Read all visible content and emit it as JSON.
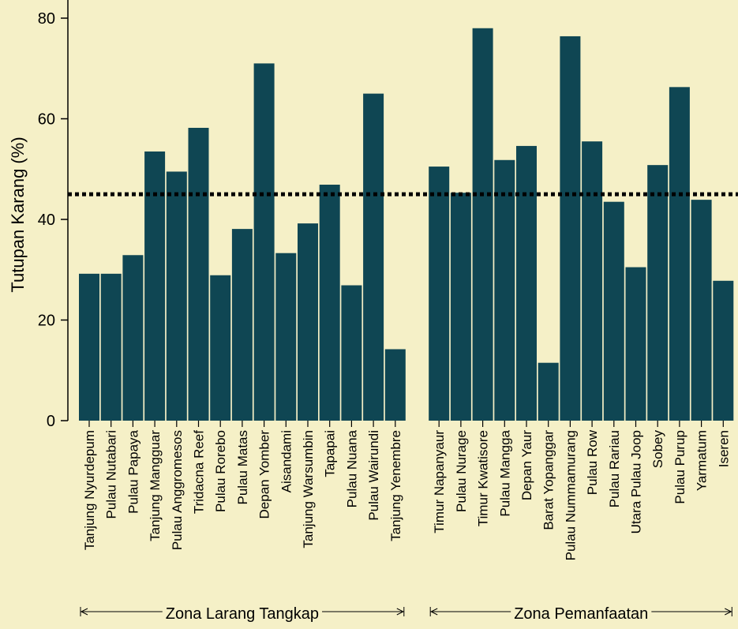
{
  "chart_data": {
    "type": "bar",
    "title": "",
    "xlabel": "",
    "ylabel": "Tutupan Karang (%)",
    "ylim": [
      0,
      80
    ],
    "yticks": [
      0,
      20,
      40,
      60,
      80
    ],
    "grid": false,
    "bar_color": "#0f4653",
    "reference_line": {
      "value": 45,
      "style": "dotted",
      "color": "#000000"
    },
    "groups": [
      {
        "label": "Zona Larang Tangkap",
        "categories": [
          "Tanjung Nyurdepum",
          "Pulau Nutabari",
          "Pulau Papaya",
          "Tanjung Mangguar",
          "Pulau Anggromesos",
          "Tridacna Reef",
          "Pulau Rorebo",
          "Pulau Matas",
          "Depan Yomber",
          "Aisandami",
          "Tanjung Warsumbin",
          "Tapapai",
          "Pulau Nuana",
          "Pulau Wairundi",
          "Tanjung Yenembre"
        ],
        "values": [
          29.2,
          29.2,
          32.9,
          53.5,
          49.5,
          58.2,
          28.9,
          38.1,
          71.0,
          33.3,
          39.2,
          46.9,
          26.9,
          65.0,
          14.2
        ]
      },
      {
        "label": "Zona Pemanfaatan",
        "categories": [
          "Timur Napanyaur",
          "Pulau Nurage",
          "Timur Kwatisore",
          "Pulau Mangga",
          "Depan Yaur",
          "Barat Yopanggar",
          "Pulau Nummamurang",
          "Pulau Row",
          "Pulau Rariau",
          "Utara Pulau Joop",
          "Sobey",
          "Pulau Purup",
          "Yarmatum",
          "Iseren"
        ],
        "values": [
          50.5,
          45.3,
          78.0,
          51.8,
          54.6,
          11.5,
          76.4,
          55.5,
          43.5,
          30.5,
          50.8,
          66.3,
          43.9,
          27.8
        ]
      }
    ]
  }
}
